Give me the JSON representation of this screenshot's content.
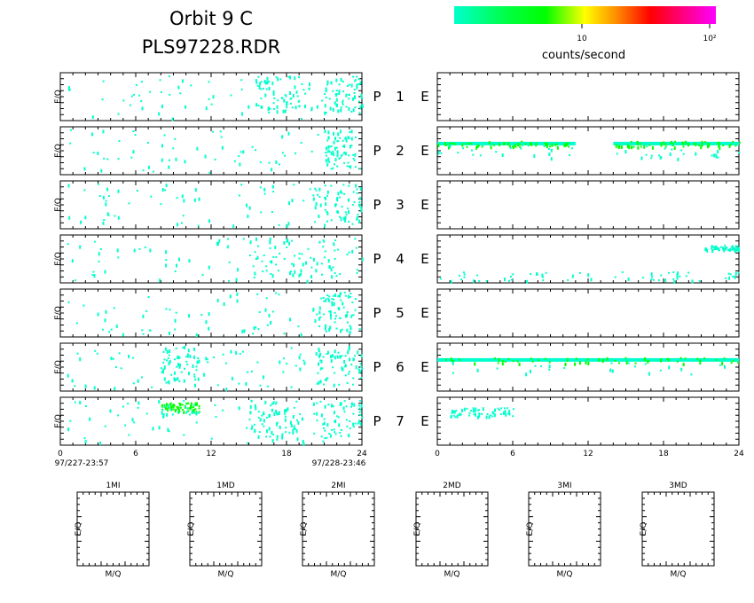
{
  "header": {
    "title_line1": "Orbit 9 C",
    "title_line2": "PLS97228.RDR"
  },
  "colorbar": {
    "label": "counts/second",
    "tick_10": "10",
    "tick_100": "10²",
    "colors": [
      "#00ffcc",
      "#00ff00",
      "#ffff00",
      "#ff7f00",
      "#ff0000",
      "#ff00ff"
    ]
  },
  "axes": {
    "ylabel": "E/Q",
    "time_ticks": [
      "0",
      "6",
      "12",
      "18",
      "24"
    ],
    "start_label": "97/227-23:57",
    "end_label": "97/228-23:46",
    "mass_xlabel": "M/Q",
    "mass_ylabel": "E/Q"
  },
  "rows": [
    {
      "p": "P",
      "n": "1",
      "e": "E"
    },
    {
      "p": "P",
      "n": "2",
      "e": "E"
    },
    {
      "p": "P",
      "n": "3",
      "e": "E"
    },
    {
      "p": "P",
      "n": "4",
      "e": "E"
    },
    {
      "p": "P",
      "n": "5",
      "e": "E"
    },
    {
      "p": "P",
      "n": "6",
      "e": "E"
    },
    {
      "p": "P",
      "n": "7",
      "e": "E"
    }
  ],
  "mass_panels": [
    "1MI",
    "1MD",
    "2MI",
    "2MD",
    "3MI",
    "3MD"
  ],
  "chart_data": {
    "type": "heatmap",
    "x_unit": "hours",
    "xlim": [
      0,
      24
    ],
    "x_ticks": [
      0,
      6,
      12,
      18,
      24
    ],
    "colorbar_scale": "log",
    "colorbar_range": [
      1,
      120
    ],
    "colorbar_ticks": [
      10,
      100
    ],
    "colorbar_label": "counts/second",
    "left_panels": [
      {
        "row": 1,
        "activity": [
          [
            0.5,
            24,
            "sparse"
          ],
          [
            15.5,
            19,
            "moderate"
          ],
          [
            21,
            24,
            "moderate"
          ]
        ]
      },
      {
        "row": 2,
        "activity": [
          [
            0.5,
            24,
            "sparse"
          ],
          [
            21,
            23.5,
            "moderate"
          ]
        ]
      },
      {
        "row": 3,
        "activity": [
          [
            0.5,
            24,
            "sparse"
          ],
          [
            20,
            24,
            "moderate"
          ]
        ]
      },
      {
        "row": 4,
        "activity": [
          [
            0.5,
            24,
            "sparse"
          ],
          [
            15,
            24,
            "moderate"
          ]
        ]
      },
      {
        "row": 5,
        "activity": [
          [
            0.5,
            24,
            "sparse"
          ],
          [
            20,
            23.5,
            "moderate"
          ]
        ]
      },
      {
        "row": 6,
        "activity": [
          [
            0.5,
            24,
            "sparse"
          ],
          [
            8,
            11,
            "moderate"
          ],
          [
            20,
            24,
            "moderate"
          ]
        ]
      },
      {
        "row": 7,
        "activity": [
          [
            0.5,
            24,
            "sparse"
          ],
          [
            8,
            11,
            "hot"
          ],
          [
            15,
            19,
            "moderate"
          ],
          [
            20,
            24,
            "moderate"
          ]
        ]
      }
    ],
    "right_panels": [
      {
        "row": 1,
        "bands": []
      },
      {
        "row": 2,
        "bands": [
          [
            0,
            11,
            0.35,
            "strong"
          ],
          [
            14,
            24,
            0.35,
            "strong"
          ]
        ]
      },
      {
        "row": 3,
        "bands": []
      },
      {
        "row": 4,
        "bands": [
          [
            0,
            24,
            0.85,
            "sparse"
          ],
          [
            21,
            24,
            0.25,
            "moderate"
          ]
        ]
      },
      {
        "row": 5,
        "bands": []
      },
      {
        "row": 6,
        "bands": [
          [
            0,
            24,
            0.35,
            "strong"
          ]
        ]
      },
      {
        "row": 7,
        "bands": [
          [
            1,
            6,
            0.3,
            "sparse"
          ]
        ]
      }
    ]
  }
}
